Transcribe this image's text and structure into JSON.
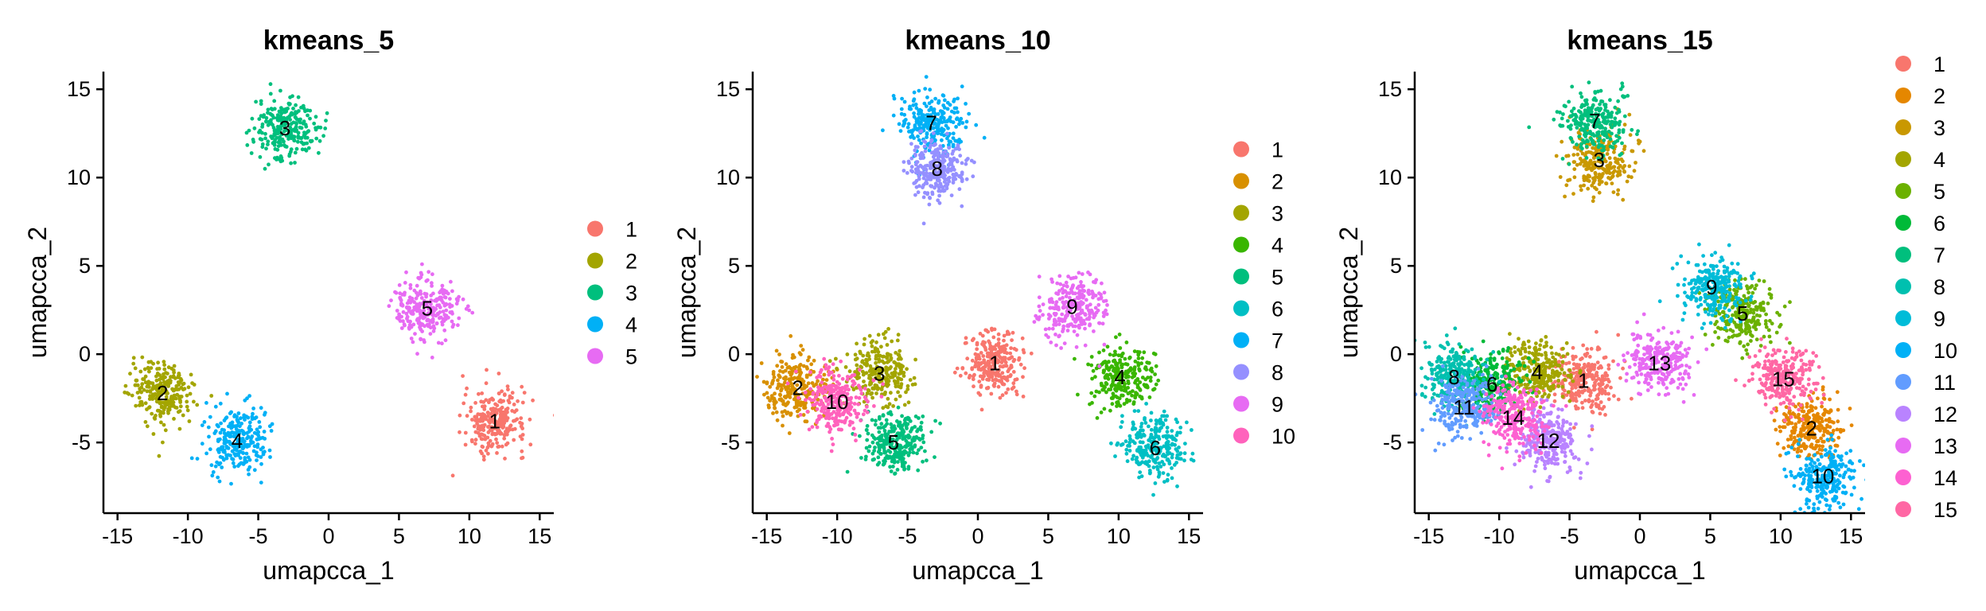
{
  "chart_data": [
    {
      "type": "scatter",
      "title": "kmeans_5",
      "xlabel": "umapcca_1",
      "ylabel": "umapcca_2",
      "xlim": [
        -16,
        16
      ],
      "ylim": [
        -9,
        16
      ],
      "xticks": [
        -15,
        -10,
        -5,
        0,
        5,
        10,
        15
      ],
      "yticks": [
        -5,
        0,
        5,
        10,
        15
      ],
      "tick_labels_x": [
        "-15",
        "-10",
        "-5",
        "0",
        "5",
        "10",
        "15"
      ],
      "tick_labels_y": [
        "-5",
        "0",
        "5",
        "10",
        "15"
      ],
      "legend_position": "right",
      "legend": [
        {
          "label": "1",
          "color": "#F8766D"
        },
        {
          "label": "2",
          "color": "#A3A500"
        },
        {
          "label": "3",
          "color": "#00BF7D"
        },
        {
          "label": "4",
          "color": "#00B0F6"
        },
        {
          "label": "5",
          "color": "#E76BF3"
        }
      ],
      "cluster_labels": [
        {
          "label": "1",
          "x": 11.8,
          "y": -3.8
        },
        {
          "label": "2",
          "x": -11.8,
          "y": -2.2
        },
        {
          "label": "3",
          "x": -3.1,
          "y": 12.8
        },
        {
          "label": "4",
          "x": -6.5,
          "y": -4.9
        },
        {
          "label": "5",
          "x": 7.0,
          "y": 2.6
        }
      ]
    },
    {
      "type": "scatter",
      "title": "kmeans_10",
      "xlabel": "umapcca_1",
      "ylabel": "umapcca_2",
      "xlim": [
        -16,
        16
      ],
      "ylim": [
        -9,
        16
      ],
      "xticks": [
        -15,
        -10,
        -5,
        0,
        5,
        10,
        15
      ],
      "yticks": [
        -5,
        0,
        5,
        10,
        15
      ],
      "tick_labels_x": [
        "-15",
        "-10",
        "-5",
        "0",
        "5",
        "10",
        "15"
      ],
      "tick_labels_y": [
        "-5",
        "0",
        "5",
        "10",
        "15"
      ],
      "legend_position": "right",
      "legend": [
        {
          "label": "1",
          "color": "#F8766D"
        },
        {
          "label": "2",
          "color": "#D89000"
        },
        {
          "label": "3",
          "color": "#A3A500"
        },
        {
          "label": "4",
          "color": "#39B600"
        },
        {
          "label": "5",
          "color": "#00BF7D"
        },
        {
          "label": "6",
          "color": "#00BFC4"
        },
        {
          "label": "7",
          "color": "#00B0F6"
        },
        {
          "label": "8",
          "color": "#9590FF"
        },
        {
          "label": "9",
          "color": "#E76BF3"
        },
        {
          "label": "10",
          "color": "#FF62BC"
        }
      ],
      "cluster_labels": [
        {
          "label": "1",
          "x": 1.2,
          "y": -0.5
        },
        {
          "label": "2",
          "x": -12.8,
          "y": -1.9
        },
        {
          "label": "3",
          "x": -7.0,
          "y": -1.1
        },
        {
          "label": "4",
          "x": 10.1,
          "y": -1.3
        },
        {
          "label": "5",
          "x": -6.0,
          "y": -5.0
        },
        {
          "label": "6",
          "x": 12.6,
          "y": -5.3
        },
        {
          "label": "7",
          "x": -3.3,
          "y": 13.1
        },
        {
          "label": "8",
          "x": -2.9,
          "y": 10.5
        },
        {
          "label": "9",
          "x": 6.7,
          "y": 2.7
        },
        {
          "label": "10",
          "x": -10.0,
          "y": -2.7
        }
      ]
    },
    {
      "type": "scatter",
      "title": "kmeans_15",
      "xlabel": "umapcca_1",
      "ylabel": "umapcca_2",
      "xlim": [
        -16,
        16
      ],
      "ylim": [
        -9,
        16
      ],
      "xticks": [
        -15,
        -10,
        -5,
        0,
        5,
        10,
        15
      ],
      "yticks": [
        -5,
        0,
        5,
        10,
        15
      ],
      "tick_labels_x": [
        "-15",
        "-10",
        "-5",
        "0",
        "5",
        "10",
        "15"
      ],
      "tick_labels_y": [
        "-5",
        "0",
        "5",
        "10",
        "15"
      ],
      "legend_position": "right",
      "legend": [
        {
          "label": "1",
          "color": "#F8766D"
        },
        {
          "label": "2",
          "color": "#E58700"
        },
        {
          "label": "3",
          "color": "#C99800"
        },
        {
          "label": "4",
          "color": "#A3A500"
        },
        {
          "label": "5",
          "color": "#6BB100"
        },
        {
          "label": "6",
          "color": "#00BA38"
        },
        {
          "label": "7",
          "color": "#00BF7D"
        },
        {
          "label": "8",
          "color": "#00C0AF"
        },
        {
          "label": "9",
          "color": "#00BCD8"
        },
        {
          "label": "10",
          "color": "#00B0F6"
        },
        {
          "label": "11",
          "color": "#619CFF"
        },
        {
          "label": "12",
          "color": "#B983FF"
        },
        {
          "label": "13",
          "color": "#E76BF3"
        },
        {
          "label": "14",
          "color": "#FD61D1"
        },
        {
          "label": "15",
          "color": "#FF67A4"
        }
      ],
      "cluster_labels": [
        {
          "label": "1",
          "x": -4.0,
          "y": -1.5
        },
        {
          "label": "2",
          "x": 12.2,
          "y": -4.2
        },
        {
          "label": "3",
          "x": -2.9,
          "y": 11.0
        },
        {
          "label": "4",
          "x": -7.3,
          "y": -1.0
        },
        {
          "label": "5",
          "x": 7.3,
          "y": 2.3
        },
        {
          "label": "6",
          "x": -10.5,
          "y": -1.7
        },
        {
          "label": "7",
          "x": -3.2,
          "y": 13.2
        },
        {
          "label": "8",
          "x": -13.2,
          "y": -1.3
        },
        {
          "label": "9",
          "x": 5.1,
          "y": 3.8
        },
        {
          "label": "10",
          "x": 13.0,
          "y": -6.9
        },
        {
          "label": "11",
          "x": -12.5,
          "y": -3.0
        },
        {
          "label": "12",
          "x": -6.5,
          "y": -4.9
        },
        {
          "label": "13",
          "x": 1.4,
          "y": -0.5
        },
        {
          "label": "14",
          "x": -9.0,
          "y": -3.6
        },
        {
          "label": "15",
          "x": 10.2,
          "y": -1.4
        }
      ]
    }
  ]
}
